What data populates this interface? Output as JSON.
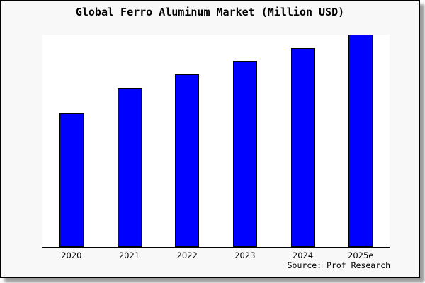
{
  "title": "Global Ferro Aluminum Market (Million USD)",
  "source_label": "Source: Prof Research",
  "colors": {
    "bar": "#0000ff",
    "bar_border": "#000000",
    "plot_bg": "#ffffff",
    "figure_bg": "#f8f8f8",
    "axis": "#000000",
    "shadow": "#9a9a9a",
    "text": "#000000"
  },
  "chart_data": {
    "type": "bar",
    "title": "Global Ferro Aluminum Market (Million USD)",
    "categories": [
      "2020",
      "2021",
      "2022",
      "2023",
      "2024",
      "2025e"
    ],
    "values": [
      63,
      74.7,
      81.3,
      87.7,
      93.7,
      100
    ],
    "values_note": "No y-axis shown in source image; values are relative, normalized so tallest bar (2025e) = 100",
    "xlabel": "",
    "ylabel": "",
    "ylim": [
      0,
      100
    ],
    "grid": false,
    "legend": null,
    "bar_color": "#0000ff",
    "annotations": [
      "Source: Prof Research"
    ]
  }
}
